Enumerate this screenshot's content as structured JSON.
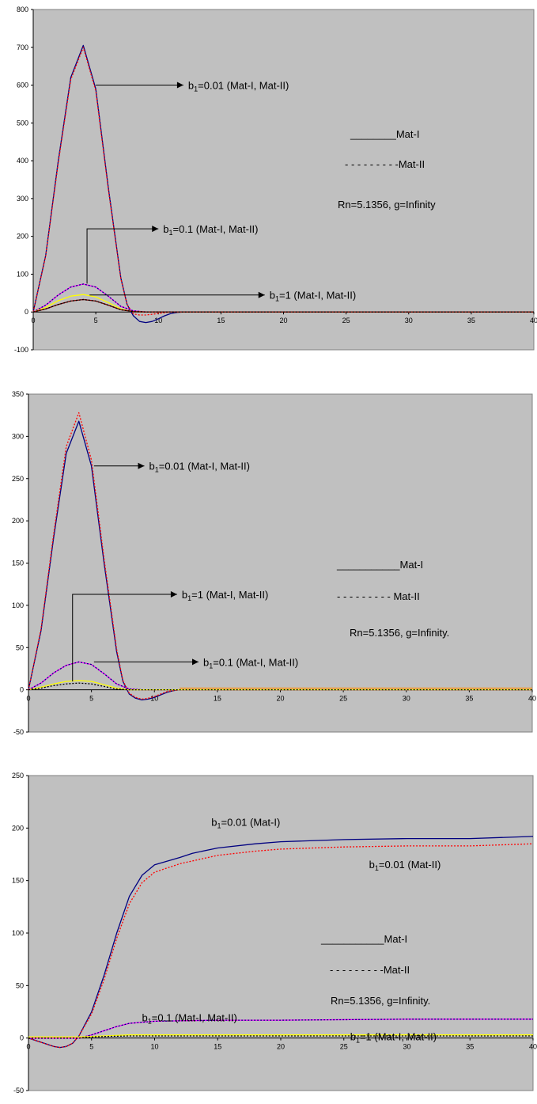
{
  "colors": {
    "plot_background": "#c0c0c0",
    "mat1_b001": "#000080",
    "mat2_b001": "#ff0000",
    "mat1_b01": "#ff00ff",
    "mat2_b01": "#000080",
    "mat1_b1": "#ffff00",
    "mat2_b1": "#800000"
  },
  "chart_data": [
    {
      "type": "line",
      "title": "",
      "xlabel": "",
      "ylabel": "",
      "xlim": [
        0,
        40
      ],
      "ylim": [
        -100,
        800
      ],
      "grid": false,
      "x_ticks": [
        "0",
        "5",
        "10",
        "15",
        "20",
        "25",
        "30",
        "35",
        "40"
      ],
      "y_ticks": [
        "-100",
        "0",
        "100",
        "200",
        "300",
        "400",
        "500",
        "600",
        "700",
        "800"
      ],
      "legend": {
        "mat1": "________Mat-I",
        "mat2": "- - - - - - - - -Mat-II",
        "params": "Rn=5.1356,   g=Infinity"
      },
      "annotations": [
        {
          "label": "b",
          "sub": "1",
          "text": "=0.01   (Mat-I,  Mat-II)",
          "from": [
            5,
            600
          ],
          "to": [
            12,
            600
          ]
        },
        {
          "label": "b",
          "sub": "1",
          "text": "=0.1   (Mat-I,  Mat-II)",
          "from": [
            4.3,
            75
          ],
          "mid": [
            4.3,
            220
          ],
          "to": [
            10,
            220
          ]
        },
        {
          "label": "b",
          "sub": "1",
          "text": "=1   (Mat-I,  Mat-II)",
          "from": [
            4.5,
            45
          ],
          "to": [
            18.5,
            45
          ]
        }
      ],
      "series": [
        {
          "color": "#000080",
          "dash": false,
          "x": [
            0,
            1,
            2,
            3,
            4,
            5,
            6,
            7,
            7.5,
            8,
            8.5,
            9,
            9.5,
            10,
            10.5,
            11,
            11.5,
            12,
            13,
            15,
            40
          ],
          "y": [
            0,
            150,
            400,
            620,
            705,
            590,
            330,
            90,
            20,
            -10,
            -25,
            -28,
            -25,
            -18,
            -10,
            -4,
            -1,
            0,
            0,
            0,
            0
          ]
        },
        {
          "color": "#ff0000",
          "dash": true,
          "x": [
            0,
            1,
            2,
            3,
            4,
            5,
            6,
            7,
            7.5,
            8,
            8.5,
            9,
            9.5,
            10,
            10.5,
            11,
            12,
            40
          ],
          "y": [
            0,
            148,
            395,
            615,
            700,
            585,
            325,
            88,
            20,
            -5,
            -8,
            -8,
            -6,
            -4,
            -2,
            0,
            0,
            0
          ]
        },
        {
          "color": "#ff00ff",
          "dash": false,
          "x": [
            0,
            1,
            2,
            3,
            4,
            5,
            6,
            7,
            8,
            9,
            10,
            40
          ],
          "y": [
            0,
            18,
            45,
            66,
            74,
            66,
            42,
            15,
            3,
            0,
            0,
            0
          ]
        },
        {
          "color": "#000080",
          "dash": true,
          "x": [
            0,
            1,
            2,
            3,
            4,
            5,
            6,
            7,
            8,
            9,
            10,
            40
          ],
          "y": [
            0,
            18,
            45,
            66,
            74,
            66,
            42,
            15,
            3,
            0,
            0,
            0
          ]
        },
        {
          "color": "#ffff00",
          "dash": false,
          "x": [
            0,
            1,
            2,
            3,
            4,
            5,
            6,
            7,
            8,
            9,
            40
          ],
          "y": [
            0,
            12,
            30,
            42,
            46,
            40,
            25,
            8,
            1,
            0,
            0
          ]
        },
        {
          "color": "#800000",
          "dash": false,
          "x": [
            0,
            1,
            2,
            3,
            4,
            5,
            6,
            7,
            8,
            9,
            40
          ],
          "y": [
            0,
            8,
            20,
            29,
            33,
            29,
            18,
            6,
            1,
            0,
            0
          ]
        },
        {
          "color": "#000000",
          "dash": true,
          "x": [
            0,
            1,
            2,
            3,
            4,
            5,
            6,
            7,
            8,
            9,
            40
          ],
          "y": [
            0,
            8,
            20,
            29,
            33,
            29,
            18,
            6,
            1,
            0,
            0
          ]
        }
      ]
    },
    {
      "type": "line",
      "title": "",
      "xlabel": "",
      "ylabel": "",
      "xlim": [
        0,
        40
      ],
      "ylim": [
        -50,
        350
      ],
      "grid": false,
      "x_ticks": [
        "0",
        "5",
        "10",
        "15",
        "20",
        "25",
        "30",
        "35",
        "40"
      ],
      "y_ticks": [
        "-50",
        "0",
        "50",
        "100",
        "150",
        "200",
        "250",
        "300",
        "350"
      ],
      "legend": {
        "mat1": "___________Mat-I",
        "mat2": "- - - - - - - - - Mat-II",
        "params": "Rn=5.1356,   g=Infinity."
      },
      "annotations": [
        {
          "label": "b",
          "sub": "1",
          "text": "=0.01  (Mat-I,  Mat-II)",
          "from": [
            5.2,
            265
          ],
          "to": [
            9.2,
            265
          ]
        },
        {
          "label": "b",
          "sub": "1",
          "text": "=1  (Mat-I,  Mat-II)",
          "from": [
            3.5,
            10
          ],
          "mid": [
            3.5,
            113
          ],
          "to": [
            11.8,
            113
          ]
        },
        {
          "label": "b",
          "sub": "1",
          "text": "=0.1  (Mat-I,  Mat-II)",
          "from": [
            5.2,
            33
          ],
          "to": [
            13.5,
            33
          ]
        }
      ],
      "series": [
        {
          "color": "#000080",
          "dash": false,
          "x": [
            0,
            1,
            2,
            3,
            4,
            5,
            6,
            7,
            7.5,
            8,
            8.5,
            9,
            9.5,
            10,
            10.5,
            11,
            11.5,
            12,
            13,
            15,
            40
          ],
          "y": [
            0,
            70,
            180,
            280,
            318,
            265,
            150,
            45,
            10,
            -5,
            -10,
            -12,
            -11,
            -9,
            -6,
            -3,
            -1,
            0,
            0,
            0,
            0
          ]
        },
        {
          "color": "#ff0000",
          "dash": true,
          "x": [
            0,
            1,
            2,
            3,
            4,
            5,
            6,
            7,
            7.5,
            8,
            8.5,
            9,
            9.5,
            10,
            10.5,
            11,
            12,
            40
          ],
          "y": [
            0,
            72,
            184,
            288,
            328,
            272,
            155,
            48,
            11,
            -4,
            -9,
            -11,
            -10,
            -8,
            -5,
            -2,
            0,
            0
          ]
        },
        {
          "color": "#ff00ff",
          "dash": false,
          "x": [
            0,
            1,
            2,
            3,
            4,
            5,
            6,
            7,
            8,
            9,
            10,
            40
          ],
          "y": [
            0,
            8,
            20,
            29,
            33,
            30,
            19,
            7,
            1,
            0,
            0,
            0
          ]
        },
        {
          "color": "#000080",
          "dash": true,
          "x": [
            0,
            1,
            2,
            3,
            4,
            5,
            6,
            7,
            8,
            9,
            10,
            40
          ],
          "y": [
            0,
            8,
            20,
            29,
            33,
            30,
            19,
            7,
            1,
            0,
            0,
            0
          ]
        },
        {
          "color": "#ffff00",
          "dash": false,
          "x": [
            0,
            1,
            2,
            3,
            4,
            5,
            6,
            7,
            8,
            9,
            40
          ],
          "y": [
            0,
            3,
            7,
            10,
            11,
            10,
            6,
            2,
            0,
            0,
            0
          ]
        },
        {
          "color": "#ff8c00",
          "dash": false,
          "x": [
            12,
            40
          ],
          "y": [
            2,
            2
          ]
        },
        {
          "color": "#000000",
          "dash": true,
          "x": [
            0,
            1,
            2,
            3,
            4,
            5,
            6,
            7,
            8,
            9,
            40
          ],
          "y": [
            0,
            2,
            5,
            7,
            8,
            7,
            4,
            1,
            0,
            0,
            0
          ]
        }
      ]
    },
    {
      "type": "line",
      "title": "",
      "xlabel": "",
      "ylabel": "",
      "xlim": [
        0,
        40
      ],
      "ylim": [
        -50,
        250
      ],
      "grid": false,
      "x_ticks": [
        "0",
        "5",
        "10",
        "15",
        "20",
        "25",
        "30",
        "35",
        "40"
      ],
      "y_ticks": [
        "-50",
        "0",
        "50",
        "100",
        "150",
        "200",
        "250"
      ],
      "legend": {
        "mat1": "___________Mat-I",
        "mat2": "- - - - - - - - -Mat-II",
        "params": "Rn=5.1356,   g=Infinity."
      },
      "annotations": [
        {
          "label": "b",
          "sub": "1",
          "text": "=0.01   (Mat-I)",
          "at": [
            14.5,
            205
          ]
        },
        {
          "label": "b",
          "sub": "1",
          "text": "=0.01   (Mat-II)",
          "at": [
            27,
            165
          ]
        },
        {
          "label": "b",
          "sub": "1",
          "text": "=0.1  (Mat-I,  Mat-II)",
          "at": [
            9,
            19
          ]
        },
        {
          "label": "b",
          "sub": "1",
          "text": "=1  (Mat-I,  Mat-II)",
          "at": [
            25.5,
            1
          ]
        }
      ],
      "series": [
        {
          "color": "#000080",
          "dash": false,
          "x": [
            0,
            1,
            2,
            2.5,
            3,
            3.5,
            4,
            5,
            6,
            7,
            8,
            9,
            10,
            12,
            13,
            15,
            18,
            20,
            25,
            30,
            35,
            40
          ],
          "y": [
            0,
            -4,
            -8,
            -9,
            -8,
            -5,
            2,
            25,
            60,
            100,
            135,
            155,
            165,
            172,
            176,
            181,
            185,
            187,
            189,
            190,
            190,
            192
          ]
        },
        {
          "color": "#ff0000",
          "dash": true,
          "x": [
            0,
            1,
            2,
            2.5,
            3,
            3.5,
            4,
            5,
            6,
            7,
            8,
            9,
            10,
            12,
            15,
            18,
            20,
            25,
            30,
            35,
            40
          ],
          "y": [
            0,
            -4,
            -8,
            -9,
            -8,
            -5,
            2,
            23,
            56,
            95,
            128,
            148,
            158,
            166,
            174,
            178,
            180,
            182,
            183,
            183,
            185
          ]
        },
        {
          "color": "#ff00ff",
          "dash": false,
          "x": [
            0,
            4,
            5,
            6,
            7,
            8,
            10,
            15,
            20,
            30,
            40
          ],
          "y": [
            0,
            0,
            3,
            7,
            11,
            14,
            16,
            17,
            17,
            18,
            18
          ]
        },
        {
          "color": "#000080",
          "dash": true,
          "x": [
            0,
            4,
            5,
            6,
            7,
            8,
            10,
            15,
            20,
            30,
            40
          ],
          "y": [
            0,
            0,
            3,
            7,
            11,
            14,
            16,
            17,
            17,
            18,
            18
          ]
        },
        {
          "color": "#ffff00",
          "dash": false,
          "x": [
            0,
            4,
            5,
            6,
            7,
            8,
            10,
            20,
            40
          ],
          "y": [
            1,
            1,
            1.5,
            2,
            2.5,
            3,
            3,
            3,
            3
          ]
        },
        {
          "color": "#000000",
          "dash": true,
          "x": [
            0,
            4,
            5,
            6,
            8,
            10,
            20,
            40
          ],
          "y": [
            0,
            0,
            1,
            1.5,
            2,
            2,
            2,
            2
          ]
        }
      ]
    }
  ]
}
